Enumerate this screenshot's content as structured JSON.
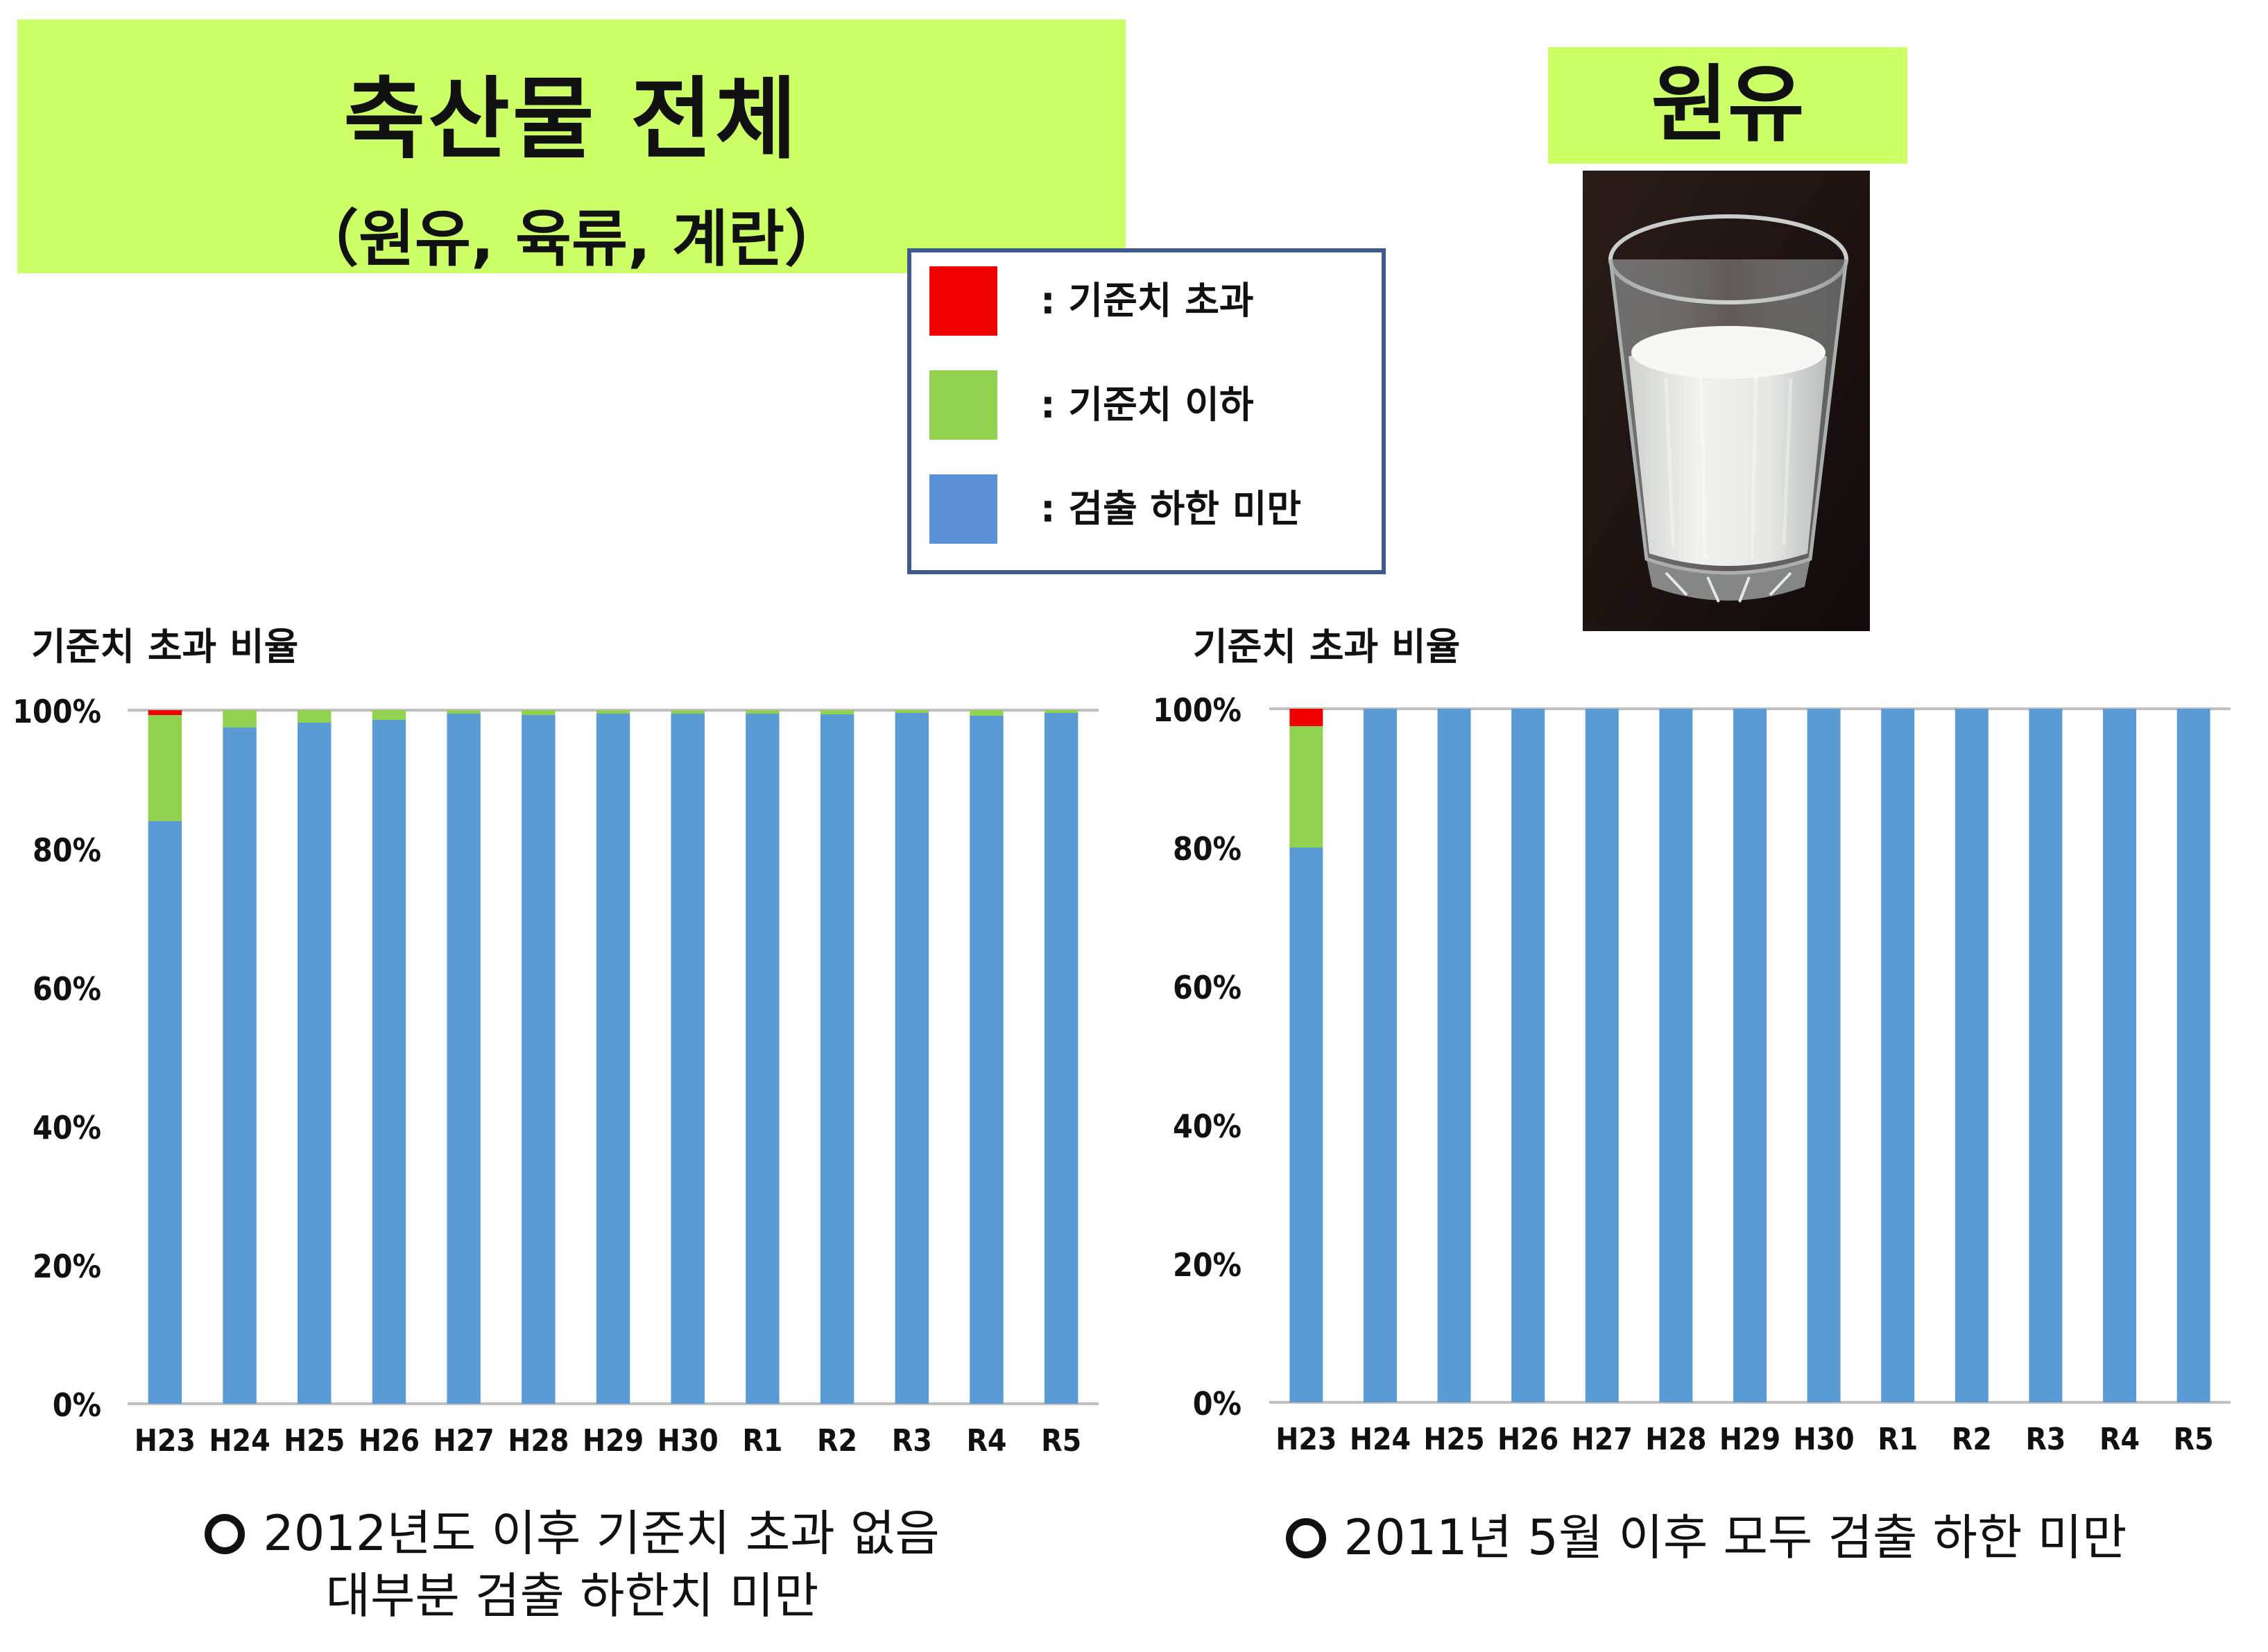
{
  "title": {
    "main": "축산물 전체",
    "sub": "（원유, 육류, 계란）"
  },
  "milk": {
    "label": "원유"
  },
  "legend": {
    "items": [
      {
        "label": ": 기준치 초과",
        "color": "#ee0000"
      },
      {
        "label": ": 기준치 이하",
        "color": "#92d050"
      },
      {
        "label": ": 검출 하한 미만",
        "color": "#5b8fd6"
      }
    ]
  },
  "colors": {
    "exceed": "#ee0000",
    "below": "#92d050",
    "nd": "#5b9bd5",
    "axis": "#bfbfbf",
    "title_bg": "#ccff66"
  },
  "chart_data": [
    {
      "type": "bar",
      "stacked": true,
      "title": "기준치 초과 비율",
      "categories": [
        "H23",
        "H24",
        "H25",
        "H26",
        "H27",
        "H28",
        "H29",
        "H30",
        "R1",
        "R2",
        "R3",
        "R4",
        "R5"
      ],
      "ylim": [
        0,
        100
      ],
      "yticks": [
        "0%",
        "20%",
        "40%",
        "60%",
        "80%",
        "100%"
      ],
      "grid": false,
      "series": [
        {
          "key": "nd",
          "values": [
            84.0,
            97.5,
            98.2,
            98.6,
            99.5,
            99.3,
            99.5,
            99.5,
            99.5,
            99.4,
            99.6,
            99.2,
            99.6
          ]
        },
        {
          "key": "below",
          "values": [
            15.3,
            2.5,
            1.8,
            1.4,
            0.5,
            0.7,
            0.5,
            0.5,
            0.5,
            0.6,
            0.4,
            0.8,
            0.4
          ]
        },
        {
          "key": "exceed",
          "values": [
            0.7,
            0,
            0,
            0,
            0,
            0,
            0,
            0,
            0,
            0,
            0,
            0,
            0
          ]
        }
      ],
      "note_lines": [
        "2012년도 이후 기준치 초과 없음",
        "대부분 검출 하한치 미만"
      ]
    },
    {
      "type": "bar",
      "stacked": true,
      "title": "기준치 초과 비율",
      "categories": [
        "H23",
        "H24",
        "H25",
        "H26",
        "H27",
        "H28",
        "H29",
        "H30",
        "R1",
        "R2",
        "R3",
        "R4",
        "R5"
      ],
      "ylim": [
        0,
        100
      ],
      "yticks": [
        "0%",
        "20%",
        "40%",
        "60%",
        "80%",
        "100%"
      ],
      "grid": false,
      "series": [
        {
          "key": "nd",
          "values": [
            80.0,
            100,
            100,
            100,
            100,
            100,
            100,
            100,
            100,
            100,
            100,
            100,
            100
          ]
        },
        {
          "key": "below",
          "values": [
            17.5,
            0,
            0,
            0,
            0,
            0,
            0,
            0,
            0,
            0,
            0,
            0,
            0
          ]
        },
        {
          "key": "exceed",
          "values": [
            2.5,
            0,
            0,
            0,
            0,
            0,
            0,
            0,
            0,
            0,
            0,
            0,
            0
          ]
        }
      ],
      "note_lines": [
        "2011년 5월 이후 모두 검출 하한 미만"
      ]
    }
  ]
}
